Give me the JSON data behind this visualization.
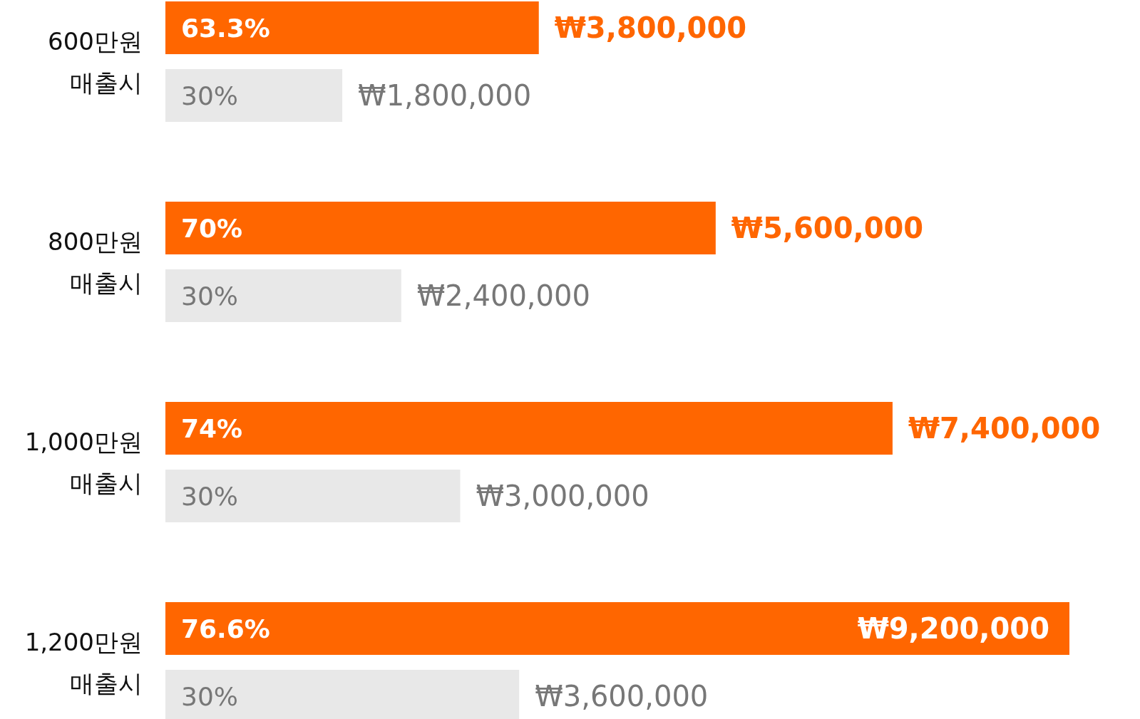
{
  "chart_data": {
    "type": "bar",
    "orientation": "horizontal",
    "tick_labels": "y",
    "categories": [
      "600만원\n매출시",
      "800만원\n매출시",
      "1,000만원\n매출시",
      "1,200만원\n매출시"
    ],
    "series": [
      {
        "color": "#ff6600",
        "values": [
          3800000,
          5600000,
          7400000,
          9200000
        ],
        "value_labels": [
          "₩3,800,000",
          "₩5,600,000",
          "₩7,400,000",
          "₩9,200,000"
        ]
      },
      {
        "color": "#e8e8e8",
        "values": [
          1800000,
          2400000,
          3000000,
          3600000
        ],
        "value_labels": [
          "₩1,800,000",
          "₩2,400,000",
          "₩3,000,000",
          "₩3,600,000"
        ]
      }
    ],
    "annotations": [
      "63.3%",
      "30%",
      "70%",
      "30%",
      "74%",
      "30%",
      "76.6%",
      "30%"
    ]
  }
}
